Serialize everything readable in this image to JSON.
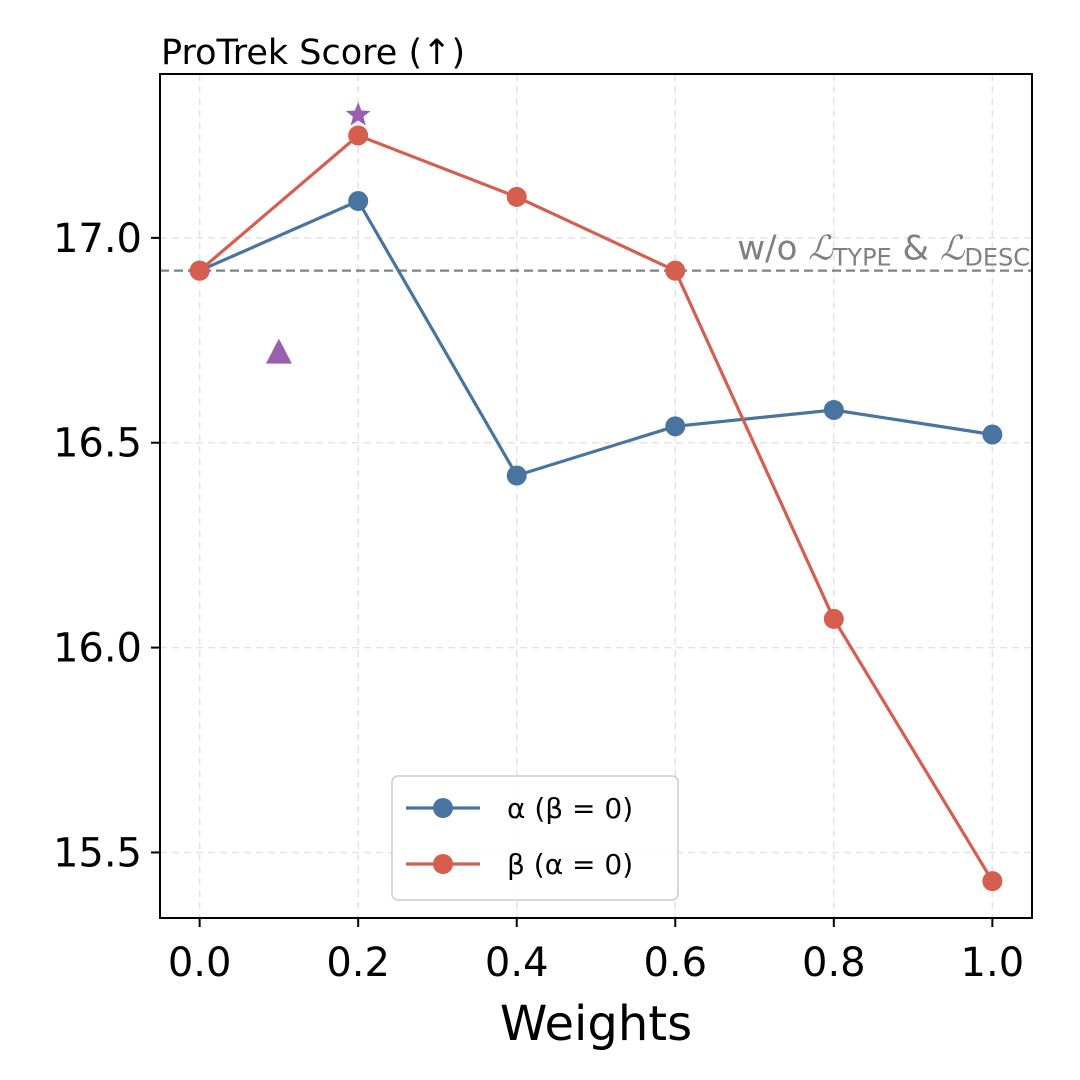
{
  "chart_data": {
    "type": "line",
    "title": "ProTrek Score (↑)",
    "xlabel": "Weights",
    "ylabel": "",
    "x": [
      0.0,
      0.2,
      0.4,
      0.6,
      0.8,
      1.0
    ],
    "xticks": [
      "0.0",
      "0.2",
      "0.4",
      "0.6",
      "0.8",
      "1.0"
    ],
    "yticks": [
      "15.5",
      "16.0",
      "16.5",
      "17.0"
    ],
    "ytick_values": [
      15.5,
      16.0,
      16.5,
      17.0
    ],
    "xlim": [
      -0.05,
      1.05
    ],
    "ylim": [
      15.34,
      17.4
    ],
    "grid": true,
    "series": [
      {
        "name": "α (β = 0)",
        "color": "#4A74A0",
        "marker": "circle",
        "values": [
          16.92,
          17.09,
          16.42,
          16.54,
          16.58,
          16.52
        ]
      },
      {
        "name": "β (α = 0)",
        "color": "#D55E4F",
        "marker": "circle",
        "values": [
          16.92,
          17.25,
          17.1,
          16.92,
          16.07,
          15.43
        ]
      }
    ],
    "legend_position": "lower-center",
    "baseline": {
      "value": 16.92,
      "label_main": "w/o ",
      "label_l": "ℒ",
      "label_sub1": "TYPE",
      "label_amp": " & ",
      "label_sub2": "DESC",
      "color": "#808080"
    },
    "extra_markers": [
      {
        "shape": "star",
        "x": 0.2,
        "y": 17.3,
        "color": "#9B5FAF"
      },
      {
        "shape": "triangle",
        "x": 0.1,
        "y": 16.72,
        "color": "#9B5FAF"
      }
    ]
  }
}
